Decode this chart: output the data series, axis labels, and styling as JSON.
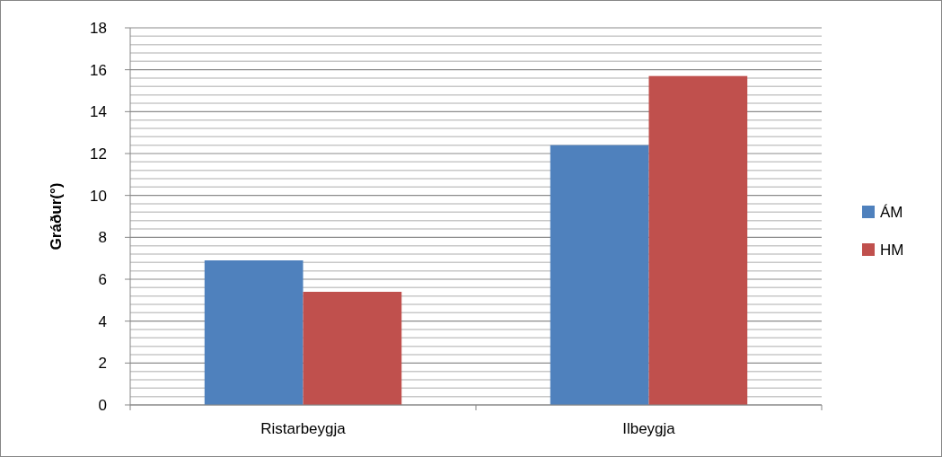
{
  "chart_data": {
    "type": "bar",
    "ylabel": "Gráður(°)",
    "categories": [
      "Ristarbeygja",
      "Ilbeygja"
    ],
    "series": [
      {
        "name": "ÁM",
        "color": "#4f81bd",
        "values": [
          6.9,
          12.4
        ]
      },
      {
        "name": "HM",
        "color": "#c0504d",
        "values": [
          5.4,
          15.7
        ]
      }
    ],
    "ylim": [
      0,
      18
    ],
    "yticks": [
      0,
      {
        "value": 0.4,
        "label": null
      },
      {
        "value": 0.8,
        "label": null
      },
      {
        "value": 1.2,
        "label": null
      },
      {
        "value": 1.6,
        "label": null
      },
      2,
      {
        "value": 2.4,
        "label": null
      },
      {
        "value": 2.8,
        "label": null
      },
      {
        "value": 3.2,
        "label": null
      },
      {
        "value": 3.6,
        "label": null
      },
      4,
      {
        "value": 4.4,
        "label": null
      },
      {
        "value": 4.8,
        "label": null
      },
      {
        "value": 5.2,
        "label": null
      },
      {
        "value": 5.6,
        "label": null
      },
      6,
      {
        "value": 6.4,
        "label": null
      },
      {
        "value": 6.8,
        "label": null
      },
      {
        "value": 7.2,
        "label": null
      },
      {
        "value": 7.6,
        "label": null
      },
      8,
      {
        "value": 8.4,
        "label": null
      },
      {
        "value": 8.8,
        "label": null
      },
      {
        "value": 9.2,
        "label": null
      },
      {
        "value": 9.6,
        "label": null
      },
      10,
      {
        "value": 10.4,
        "label": null
      },
      {
        "value": 10.8,
        "label": null
      },
      {
        "value": 11.2,
        "label": null
      },
      {
        "value": 11.6,
        "label": null
      },
      12,
      {
        "value": 12.4,
        "label": null
      },
      {
        "value": 12.8,
        "label": null
      },
      {
        "value": 13.2,
        "label": null
      },
      {
        "value": 13.6,
        "label": null
      },
      14,
      {
        "value": 14.4,
        "label": null
      },
      {
        "value": 14.8,
        "label": null
      },
      {
        "value": 15.2,
        "label": null
      },
      {
        "value": 15.6,
        "label": null
      },
      16,
      {
        "value": 16.4,
        "label": null
      },
      {
        "value": 16.8,
        "label": null
      },
      {
        "value": 17.2,
        "label": null
      },
      {
        "value": 17.6,
        "label": null
      },
      18
    ],
    "grid": true,
    "legend": "right"
  }
}
